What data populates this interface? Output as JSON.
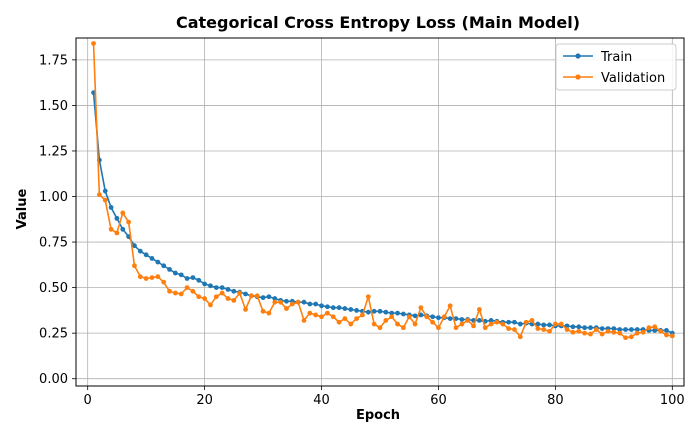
{
  "chart_data": {
    "type": "line",
    "title": "Categorical Cross Entropy Loss (Main Model)",
    "xlabel": "Epoch",
    "ylabel": "Value",
    "xlim": [
      -2,
      102
    ],
    "ylim": [
      -0.04,
      1.87
    ],
    "xticks": [
      0,
      20,
      40,
      60,
      80,
      100
    ],
    "yticks": [
      0.0,
      0.25,
      0.5,
      0.75,
      1.0,
      1.25,
      1.5,
      1.75
    ],
    "xtick_labels": [
      "0",
      "20",
      "40",
      "60",
      "80",
      "100"
    ],
    "ytick_labels": [
      "0.00",
      "0.25",
      "0.50",
      "0.75",
      "1.00",
      "1.25",
      "1.50",
      "1.75"
    ],
    "grid": true,
    "legend_position": "top-right",
    "x": [
      1,
      2,
      3,
      4,
      5,
      6,
      7,
      8,
      9,
      10,
      11,
      12,
      13,
      14,
      15,
      16,
      17,
      18,
      19,
      20,
      21,
      22,
      23,
      24,
      25,
      26,
      27,
      28,
      29,
      30,
      31,
      32,
      33,
      34,
      35,
      36,
      37,
      38,
      39,
      40,
      41,
      42,
      43,
      44,
      45,
      46,
      47,
      48,
      49,
      50,
      51,
      52,
      53,
      54,
      55,
      56,
      57,
      58,
      59,
      60,
      61,
      62,
      63,
      64,
      65,
      66,
      67,
      68,
      69,
      70,
      71,
      72,
      73,
      74,
      75,
      76,
      77,
      78,
      79,
      80,
      81,
      82,
      83,
      84,
      85,
      86,
      87,
      88,
      89,
      90,
      91,
      92,
      93,
      94,
      95,
      96,
      97,
      98,
      99,
      100
    ],
    "series": [
      {
        "name": "Train",
        "color": "#1f77b4",
        "values": [
          1.57,
          1.2,
          1.03,
          0.94,
          0.88,
          0.82,
          0.78,
          0.73,
          0.7,
          0.68,
          0.66,
          0.64,
          0.62,
          0.6,
          0.58,
          0.57,
          0.55,
          0.555,
          0.54,
          0.52,
          0.51,
          0.5,
          0.5,
          0.49,
          0.48,
          0.475,
          0.465,
          0.455,
          0.45,
          0.445,
          0.45,
          0.44,
          0.43,
          0.425,
          0.425,
          0.42,
          0.42,
          0.41,
          0.41,
          0.4,
          0.395,
          0.39,
          0.39,
          0.385,
          0.38,
          0.375,
          0.37,
          0.365,
          0.37,
          0.37,
          0.365,
          0.36,
          0.36,
          0.355,
          0.35,
          0.345,
          0.35,
          0.345,
          0.34,
          0.335,
          0.335,
          0.33,
          0.33,
          0.325,
          0.325,
          0.32,
          0.32,
          0.315,
          0.32,
          0.315,
          0.31,
          0.31,
          0.31,
          0.3,
          0.305,
          0.3,
          0.3,
          0.295,
          0.295,
          0.29,
          0.29,
          0.29,
          0.285,
          0.285,
          0.28,
          0.28,
          0.28,
          0.275,
          0.275,
          0.275,
          0.27,
          0.27,
          0.27,
          0.27,
          0.27,
          0.265,
          0.265,
          0.265,
          0.265,
          0.25
        ]
      },
      {
        "name": "Validation",
        "color": "#ff7f0e",
        "values": [
          1.84,
          1.01,
          0.98,
          0.82,
          0.8,
          0.91,
          0.86,
          0.62,
          0.56,
          0.55,
          0.555,
          0.56,
          0.53,
          0.48,
          0.47,
          0.465,
          0.5,
          0.48,
          0.45,
          0.44,
          0.405,
          0.45,
          0.47,
          0.44,
          0.43,
          0.47,
          0.38,
          0.455,
          0.455,
          0.37,
          0.36,
          0.42,
          0.42,
          0.385,
          0.41,
          0.42,
          0.32,
          0.36,
          0.35,
          0.34,
          0.36,
          0.34,
          0.31,
          0.33,
          0.3,
          0.33,
          0.35,
          0.45,
          0.3,
          0.28,
          0.32,
          0.34,
          0.3,
          0.28,
          0.34,
          0.3,
          0.39,
          0.34,
          0.31,
          0.28,
          0.34,
          0.4,
          0.28,
          0.3,
          0.32,
          0.29,
          0.38,
          0.28,
          0.3,
          0.31,
          0.3,
          0.275,
          0.27,
          0.23,
          0.31,
          0.32,
          0.275,
          0.27,
          0.26,
          0.3,
          0.3,
          0.27,
          0.255,
          0.26,
          0.25,
          0.245,
          0.27,
          0.245,
          0.26,
          0.255,
          0.25,
          0.225,
          0.23,
          0.25,
          0.255,
          0.28,
          0.285,
          0.26,
          0.24,
          0.235
        ]
      }
    ]
  }
}
